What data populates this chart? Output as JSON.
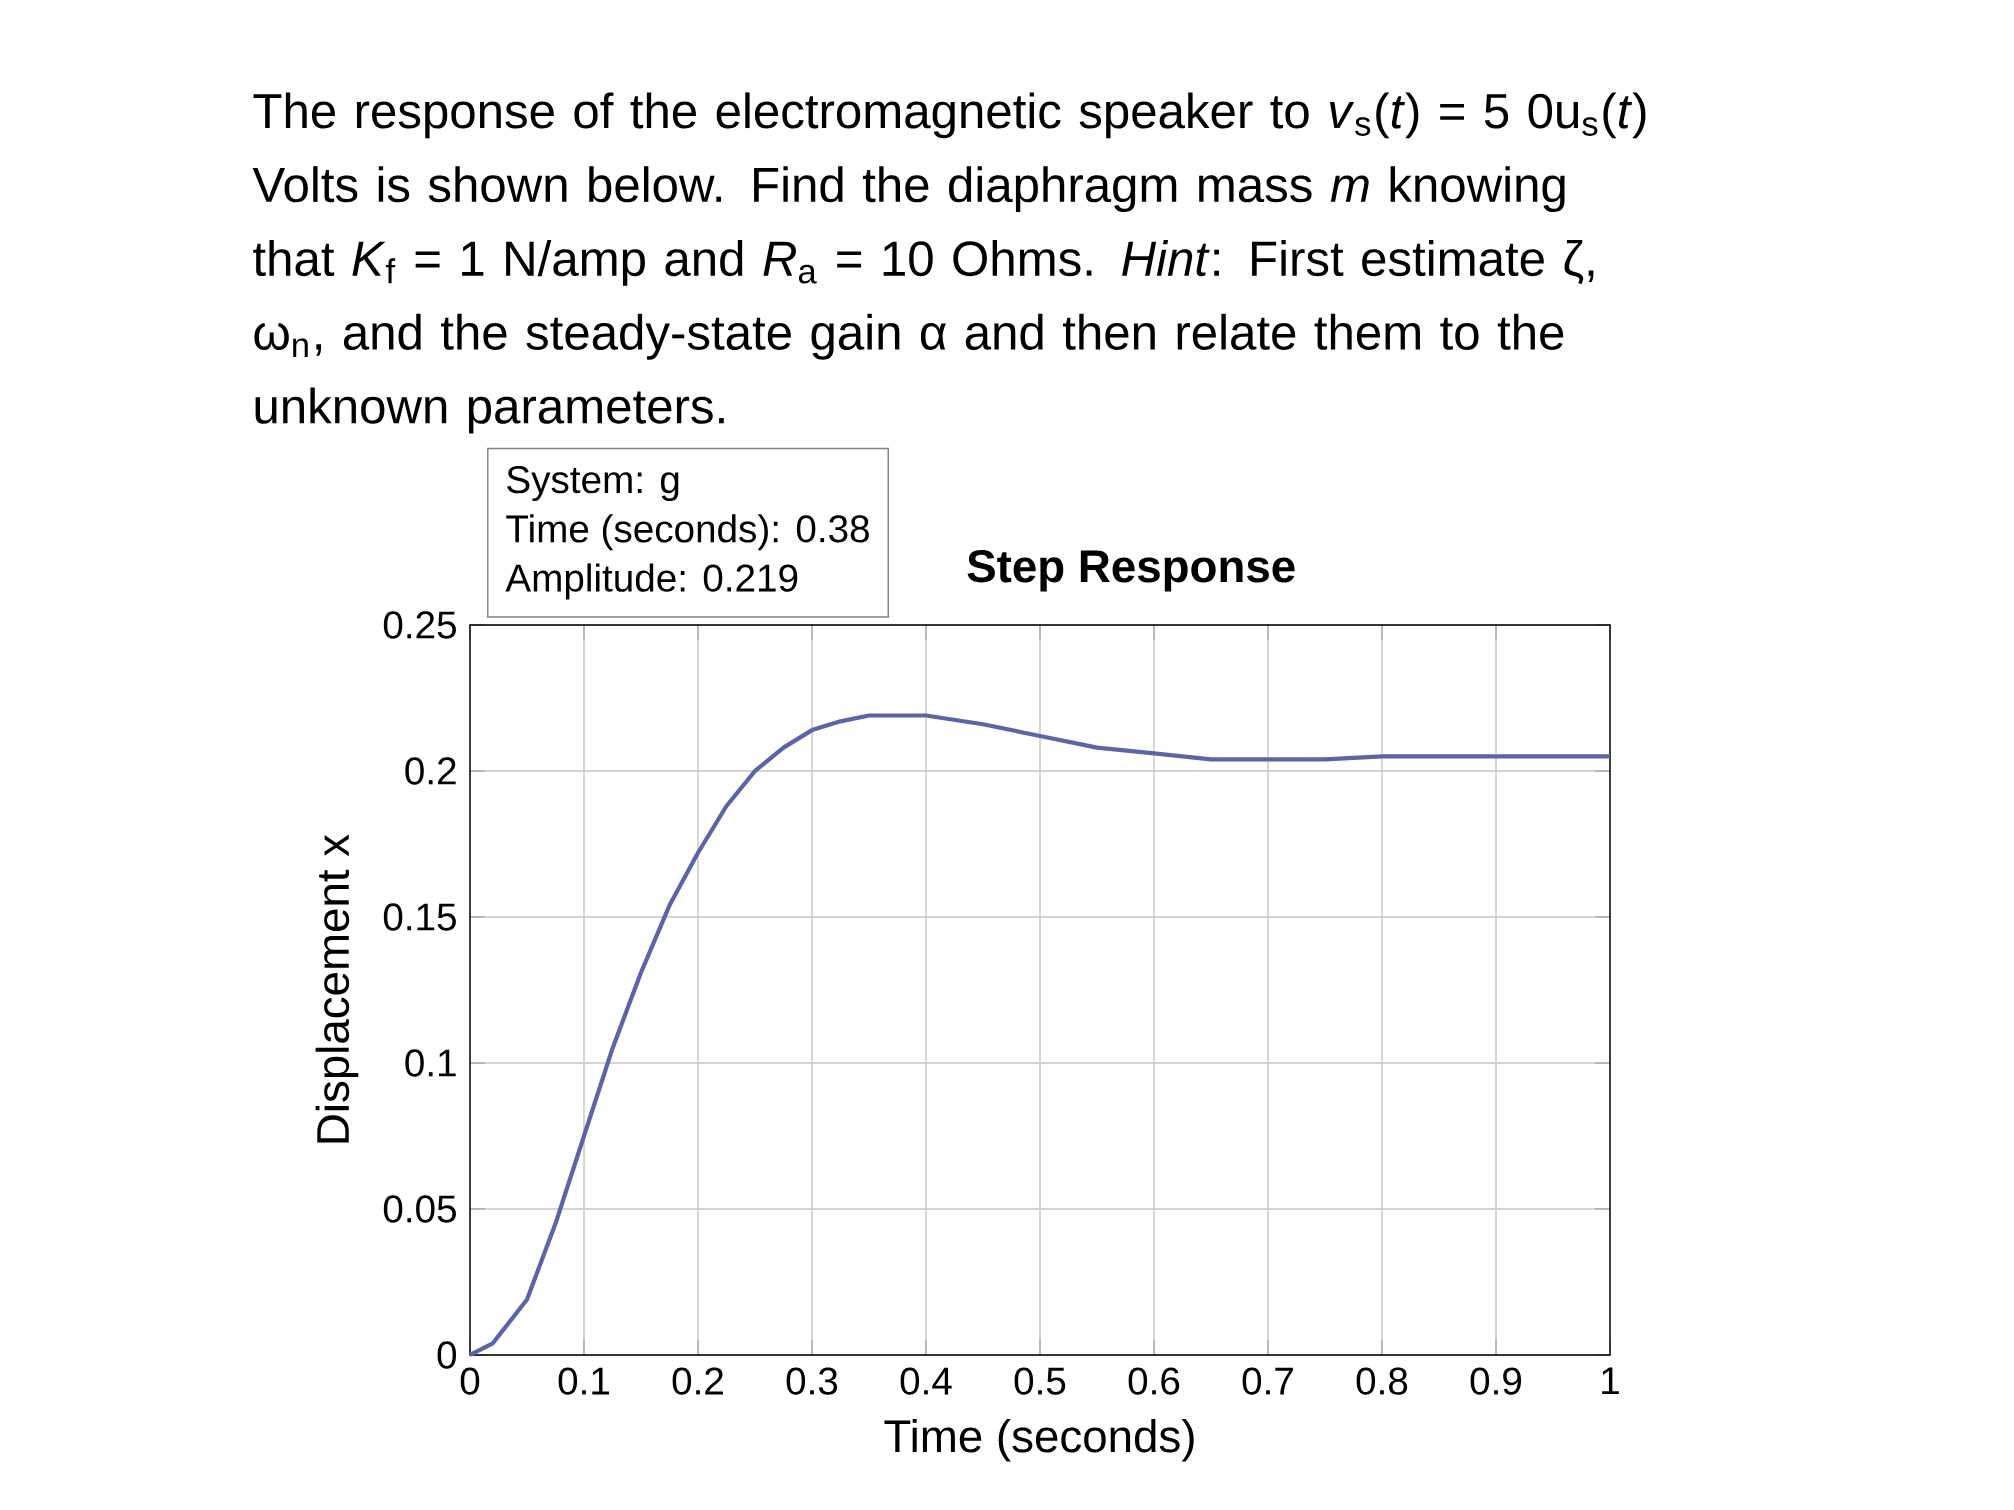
{
  "chart_data": {
    "type": "line",
    "title": "Step Response",
    "xlabel": "Time (seconds)",
    "ylabel": "Displacement x",
    "x": [
      0,
      0.02,
      0.05,
      0.075,
      0.1,
      0.125,
      0.15,
      0.175,
      0.2,
      0.225,
      0.25,
      0.275,
      0.3,
      0.325,
      0.35,
      0.38,
      0.4,
      0.45,
      0.5,
      0.55,
      0.6,
      0.65,
      0.7,
      0.75,
      0.8,
      0.9,
      1
    ],
    "series": [
      {
        "color": "#5a64a8",
        "values": [
          0,
          0.004,
          0.019,
          0.045,
          0.075,
          0.105,
          0.131,
          0.154,
          0.172,
          0.188,
          0.2,
          0.208,
          0.214,
          0.217,
          0.219,
          0.219,
          0.219,
          0.216,
          0.212,
          0.208,
          0.206,
          0.204,
          0.204,
          0.204,
          0.205,
          0.205,
          0.205
        ]
      }
    ],
    "xlim": [
      0,
      1
    ],
    "ylim": [
      0,
      0.25
    ],
    "xticks": [
      0,
      0.1,
      0.2,
      0.3,
      0.4,
      0.5,
      0.6,
      0.7,
      0.8,
      0.9,
      1
    ],
    "yticks": [
      0,
      0.05,
      0.1,
      0.15,
      0.2,
      0.25
    ],
    "grid": true,
    "marker": "none",
    "line_style": "solid",
    "annotations": [
      "The response of the electromagnetic speaker to *v*$_{s}$(*t*) = 5 0u$_{s}$(*t*) Volts is shown below. Find the diaphragm mass *m* knowing that *K*$_{f}$ = 1 N/amp and *R*$_{a}$ = 10 Ohms. *Hint*: First estimate ζ, ω$_{n}$, and the steady-state gain α and then relate them to the unknown parameters.",
      "System: g",
      "Time (seconds): 0.38",
      "Amplitude: 0.219"
    ]
  }
}
